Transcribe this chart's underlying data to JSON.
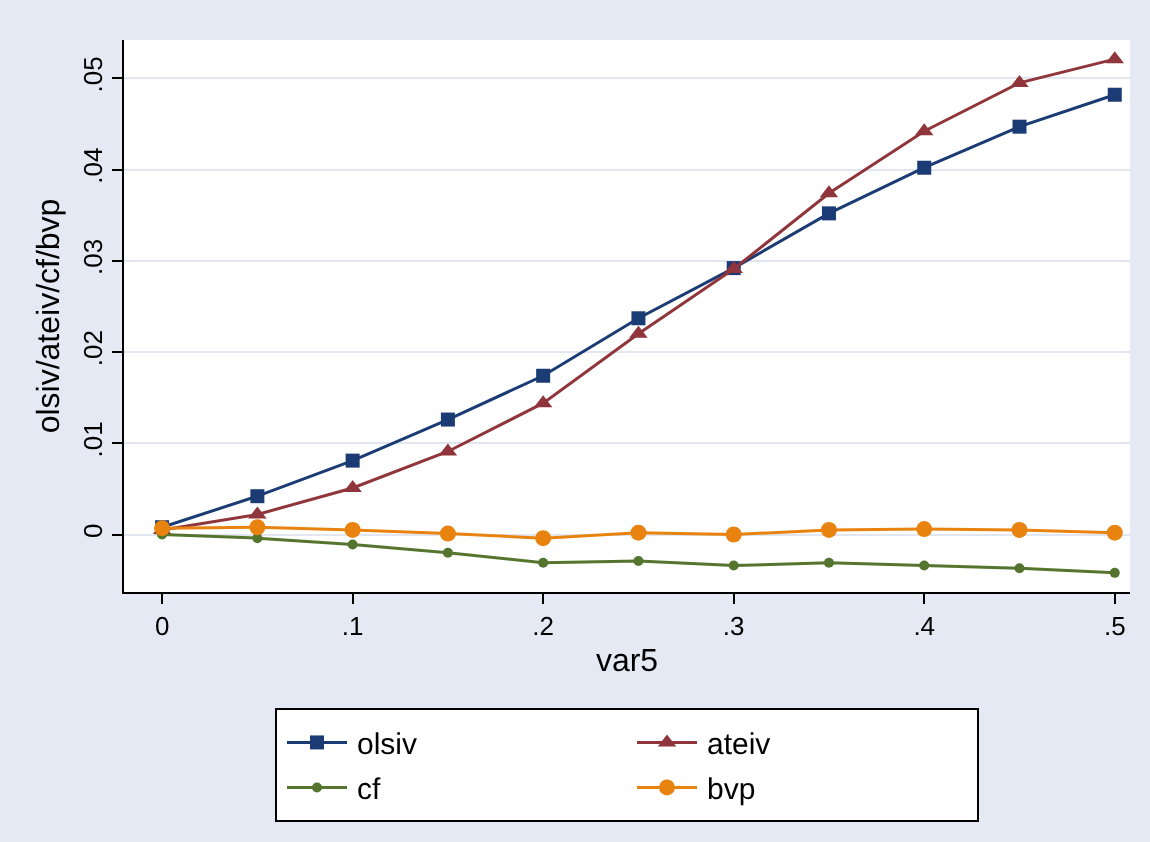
{
  "chart_data": {
    "type": "line",
    "xlabel": "var5",
    "ylabel": "olsiv/ateiv/cf/bvp",
    "x": [
      0,
      0.05,
      0.1,
      0.15,
      0.2,
      0.25,
      0.3,
      0.35,
      0.4,
      0.45,
      0.5
    ],
    "series": [
      {
        "name": "olsiv",
        "color": "#1a3b73",
        "marker": "square",
        "values": [
          0.0008,
          0.0042,
          0.0081,
          0.0126,
          0.0174,
          0.0237,
          0.0292,
          0.0352,
          0.0402,
          0.0447,
          0.0482
        ]
      },
      {
        "name": "ateiv",
        "color": "#90353b",
        "marker": "triangle",
        "values": [
          0.0005,
          0.0022,
          0.0051,
          0.0091,
          0.0144,
          0.022,
          0.0291,
          0.0374,
          0.0442,
          0.0495,
          0.0521
        ]
      },
      {
        "name": "cf",
        "color": "#55752f",
        "marker": "circle",
        "values": [
          0,
          -0.0004,
          -0.0011,
          -0.002,
          -0.0031,
          -0.0029,
          -0.0034,
          -0.0031,
          -0.0034,
          -0.0037,
          -0.0042
        ]
      },
      {
        "name": "bvp",
        "color": "#e8830f",
        "marker": "circle",
        "values": [
          0.0007,
          0.0008,
          0.0005,
          0.0001,
          -0.0004,
          0.0002,
          0.0,
          0.0005,
          0.0006,
          0.0005,
          0.0002
        ]
      }
    ],
    "xlim": [
      -0.02,
      0.508
    ],
    "xticks": [
      {
        "value": 0,
        "label": "0"
      },
      {
        "value": 0.1,
        "label": ".1"
      },
      {
        "value": 0.2,
        "label": ".2"
      },
      {
        "value": 0.3,
        "label": ".3"
      },
      {
        "value": 0.4,
        "label": ".4"
      },
      {
        "value": 0.5,
        "label": ".5"
      }
    ],
    "ylim": [
      -0.0063,
      0.0542
    ],
    "yticks": [
      {
        "value": 0,
        "label": "0"
      },
      {
        "value": 0.01,
        "label": ".01"
      },
      {
        "value": 0.02,
        "label": ".02"
      },
      {
        "value": 0.03,
        "label": ".03"
      },
      {
        "value": 0.04,
        "label": ".04"
      },
      {
        "value": 0.05,
        "label": ".05"
      }
    ],
    "grid": "y",
    "legend": "bottom",
    "line_style": "solid"
  }
}
